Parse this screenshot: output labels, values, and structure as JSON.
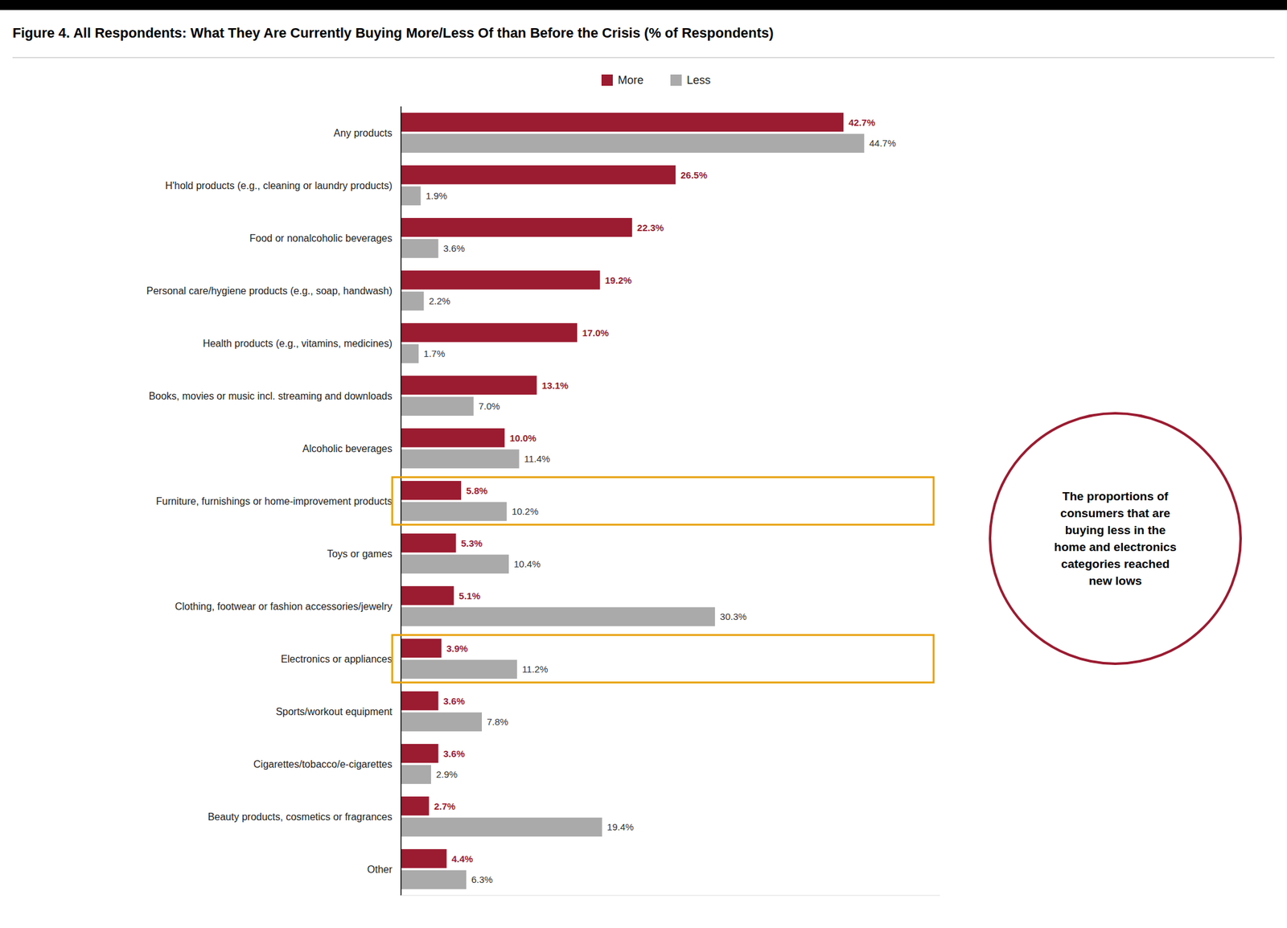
{
  "chart_data": {
    "type": "bar",
    "orientation": "horizontal",
    "title": "Figure 4. All Respondents: What They Are Currently Buying More/Less Of than Before the Crisis (% of Respondents)",
    "categories": [
      "Any products",
      "H'hold products (e.g., cleaning or laundry products)",
      "Food or nonalcoholic beverages",
      "Personal care/hygiene products (e.g., soap, handwash)",
      "Health products (e.g., vitamins, medicines)",
      "Books, movies or music incl. streaming and downloads",
      "Alcoholic beverages",
      "Furniture, furnishings or home-improvement products",
      "Toys or games",
      "Clothing, footwear or fashion accessories/jewelry",
      "Electronics or appliances",
      "Sports/workout equipment",
      "Cigarettes/tobacco/e-cigarettes",
      "Beauty products, cosmetics or fragrances",
      "Other"
    ],
    "series": [
      {
        "name": "More",
        "color": "#9B1B30",
        "values": [
          42.7,
          26.5,
          22.3,
          19.2,
          17.0,
          13.1,
          10.0,
          5.8,
          5.3,
          5.1,
          3.9,
          3.6,
          3.6,
          2.7,
          4.4
        ],
        "value_labels": [
          "42.7%",
          "26.5%",
          "22.3%",
          "19.2%",
          "17.0%",
          "13.1%",
          "10.0%",
          "5.8%",
          "5.3%",
          "5.1%",
          "3.9%",
          "3.6%",
          "3.6%",
          "2.7%",
          "4.4%"
        ]
      },
      {
        "name": "Less",
        "color": "#AAAAAA",
        "values": [
          44.7,
          1.9,
          3.6,
          2.2,
          1.7,
          7.0,
          11.4,
          10.2,
          10.4,
          30.3,
          11.2,
          7.8,
          2.9,
          19.4,
          6.3
        ],
        "value_labels": [
          "44.7%",
          "1.9%",
          "3.6%",
          "2.2%",
          "1.7%",
          "7.0%",
          "11.4%",
          "10.2%",
          "10.4%",
          "30.3%",
          "11.2%",
          "7.8%",
          "2.9%",
          "19.4%",
          "6.3%"
        ]
      }
    ],
    "xlim": [
      0,
      52
    ],
    "data_labels": true,
    "tick_labels": "y",
    "grid": false,
    "legend": "top",
    "annotation": {
      "text": "The proportions of\nconsumers that are\nbuying less in the\nhome and electronics\ncategories reached\nnew lows",
      "color": "#9B1B30",
      "highlight": {
        "categories": [
          "Furniture, furnishings or home-improvement products",
          "Electronics or appliances"
        ],
        "color": "#E8A000"
      }
    }
  }
}
